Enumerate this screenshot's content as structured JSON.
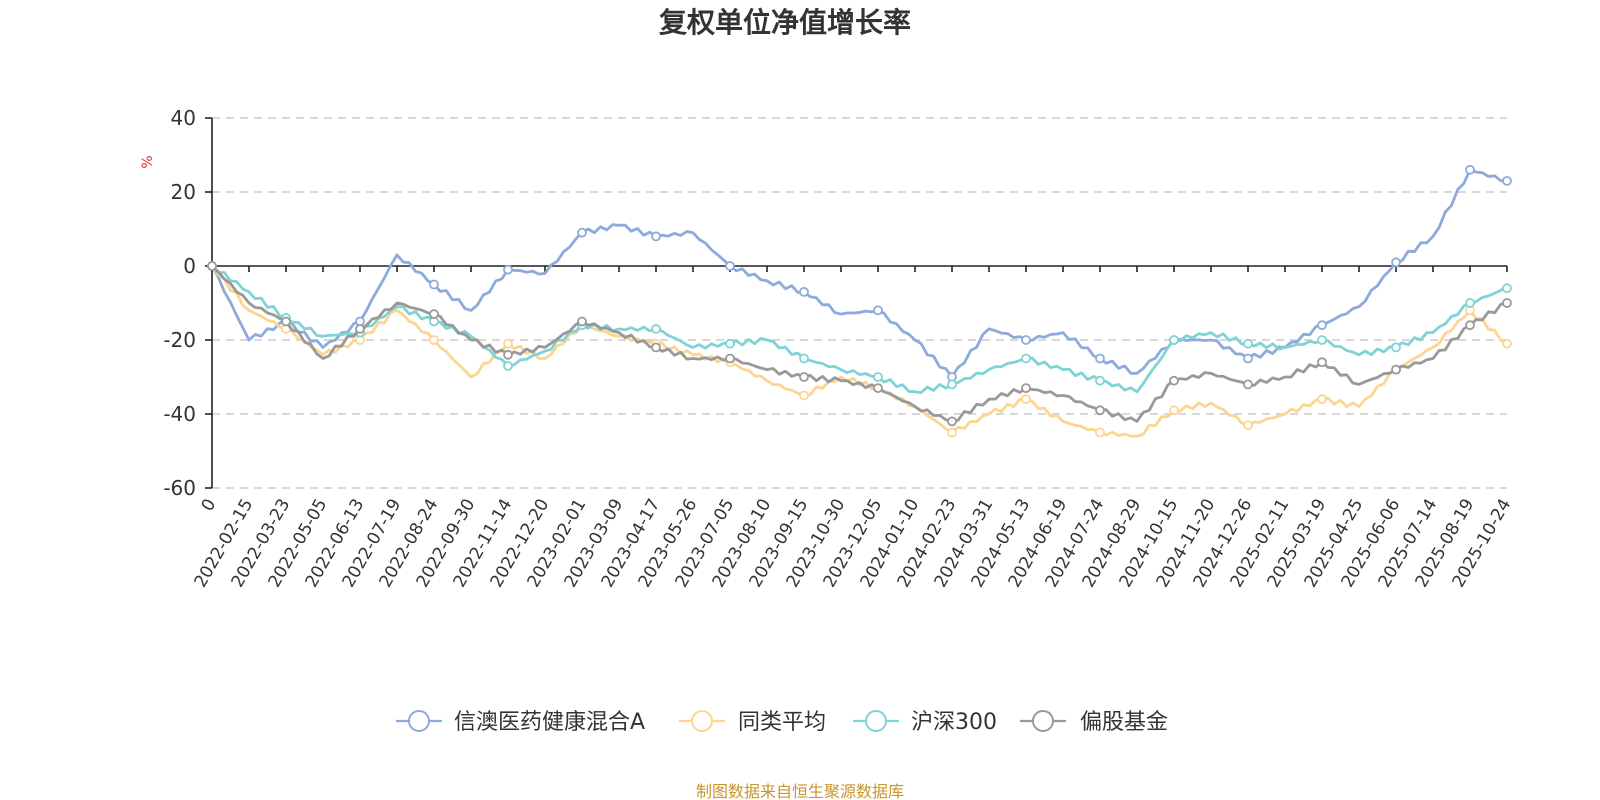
{
  "chart_data": {
    "type": "line",
    "title": "复权单位净值增长率",
    "ylabel": "%",
    "xlabel": "",
    "ylim": [
      -60,
      40
    ],
    "yticks": [
      40,
      20,
      0,
      -20,
      -40,
      -60
    ],
    "categories": [
      "0",
      "2022-02-15",
      "2022-03-23",
      "2022-05-05",
      "2022-06-13",
      "2022-07-19",
      "2022-08-24",
      "2022-09-30",
      "2022-11-14",
      "2022-12-20",
      "2023-02-01",
      "2023-03-09",
      "2023-04-17",
      "2023-05-26",
      "2023-07-05",
      "2023-08-10",
      "2023-09-15",
      "2023-10-30",
      "2023-12-05",
      "2024-01-10",
      "2024-02-23",
      "2024-03-31",
      "2024-05-13",
      "2024-06-19",
      "2024-07-24",
      "2024-08-29",
      "2024-10-15",
      "2024-11-20",
      "2024-12-26",
      "2025-02-11",
      "2025-03-19",
      "2025-04-25",
      "2025-06-06",
      "2025-07-14",
      "2025-08-19",
      "2025-10-24"
    ],
    "grid": true,
    "legend_position": "bottom",
    "series": [
      {
        "name": "信澳医药健康混合A",
        "color": "#8eaadb",
        "values": [
          0,
          -20,
          -15,
          -22,
          -15,
          3,
          -5,
          -12,
          -1,
          -2,
          9,
          11,
          8,
          9,
          0,
          -4,
          -7,
          -13,
          -12,
          -20,
          -30,
          -17,
          -20,
          -18,
          -25,
          -29,
          -20,
          -20,
          -25,
          -22,
          -16,
          -11,
          1,
          8,
          26,
          23
        ]
      },
      {
        "name": "同类平均",
        "color": "#fcd590",
        "values": [
          0,
          -12,
          -17,
          -24,
          -20,
          -12,
          -20,
          -30,
          -21,
          -25,
          -16,
          -19,
          -21,
          -24,
          -26,
          -31,
          -35,
          -30,
          -33,
          -38,
          -45,
          -40,
          -36,
          -42,
          -45,
          -46,
          -39,
          -37,
          -43,
          -40,
          -36,
          -38,
          -28,
          -22,
          -12,
          -21
        ]
      },
      {
        "name": "沪深300",
        "color": "#7fd3d6",
        "values": [
          0,
          -7,
          -14,
          -19,
          -18,
          -11,
          -15,
          -19,
          -27,
          -23,
          -16,
          -17,
          -17,
          -22,
          -21,
          -20,
          -25,
          -28,
          -30,
          -34,
          -32,
          -28,
          -25,
          -28,
          -31,
          -34,
          -20,
          -18,
          -21,
          -22,
          -20,
          -24,
          -22,
          -18,
          -10,
          -6
        ]
      },
      {
        "name": "偏股基金",
        "color": "#999999",
        "values": [
          0,
          -10,
          -15,
          -25,
          -17,
          -10,
          -13,
          -20,
          -24,
          -22,
          -15,
          -18,
          -22,
          -25,
          -25,
          -28,
          -30,
          -31,
          -33,
          -38,
          -42,
          -36,
          -33,
          -35,
          -39,
          -42,
          -31,
          -29,
          -32,
          -30,
          -26,
          -32,
          -28,
          -25,
          -16,
          -10
        ]
      }
    ]
  },
  "source": "制图数据来自恒生聚源数据库"
}
